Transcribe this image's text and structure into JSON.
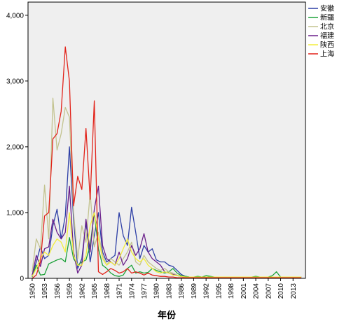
{
  "chart_data": {
    "type": "line",
    "xlabel": "年份",
    "ylabel": "",
    "ylim": [
      0,
      4200
    ],
    "yticks": [
      0,
      1000,
      2000,
      3000,
      4000
    ],
    "ytick_labels": [
      "0",
      "1,000",
      "2,000",
      "3,000",
      "4,000"
    ],
    "xlim": [
      1949,
      2016
    ],
    "xticks": [
      1950,
      1953,
      1956,
      1959,
      1962,
      1965,
      1968,
      1971,
      1974,
      1977,
      1980,
      1983,
      1986,
      1989,
      1992,
      1995,
      1998,
      2001,
      2004,
      2007,
      2010,
      2013
    ],
    "xtick_labels": [
      "1950",
      "1953",
      "1956",
      "1959",
      "1962",
      "1965",
      "1968",
      "1971",
      "1974",
      "1977",
      "1980",
      "1983",
      "1986",
      "1989",
      "1992",
      "1995",
      "1998",
      "2001",
      "2004",
      "2007",
      "2010",
      "2013"
    ],
    "legend_position": "top-right",
    "grid": false,
    "plot_background": "#efefef",
    "series": [
      {
        "name": "安徽",
        "color": "#2d3fa6",
        "x": [
          1950,
          1951,
          1952,
          1953,
          1954,
          1955,
          1956,
          1957,
          1958,
          1959,
          1960,
          1961,
          1962,
          1963,
          1964,
          1965,
          1966,
          1967,
          1968,
          1969,
          1970,
          1971,
          1972,
          1973,
          1974,
          1975,
          1976,
          1977,
          1978,
          1979,
          1980,
          1981,
          1982,
          1983,
          1984,
          1985,
          1986,
          1987,
          1988,
          1989,
          1990,
          1991,
          1992,
          1993,
          1994,
          1995,
          1996,
          1997,
          1998,
          1999,
          2000,
          2001,
          2002,
          2003,
          2004,
          2005,
          2006,
          2007,
          2008,
          2009,
          2010,
          2011,
          2012,
          2013,
          2014,
          2015
        ],
        "y": [
          50,
          250,
          480,
          300,
          350,
          800,
          1050,
          600,
          950,
          2000,
          900,
          150,
          300,
          850,
          250,
          650,
          1000,
          400,
          250,
          300,
          350,
          1000,
          650,
          500,
          1080,
          700,
          300,
          500,
          400,
          450,
          280,
          250,
          250,
          200,
          180,
          120,
          60,
          30,
          20,
          20,
          20,
          20,
          20,
          20,
          20,
          20,
          20,
          20,
          20,
          20,
          20,
          20,
          20,
          20,
          20,
          20,
          20,
          20,
          20,
          20,
          20,
          20,
          20,
          20,
          20,
          20
        ]
      },
      {
        "name": "新疆",
        "color": "#1ea23a",
        "x": [
          1950,
          1951,
          1952,
          1953,
          1954,
          1955,
          1956,
          1957,
          1958,
          1959,
          1960,
          1961,
          1962,
          1963,
          1964,
          1965,
          1966,
          1967,
          1968,
          1969,
          1970,
          1971,
          1972,
          1973,
          1974,
          1975,
          1976,
          1977,
          1978,
          1979,
          1980,
          1981,
          1982,
          1983,
          1984,
          1985,
          1986,
          1987,
          1988,
          1989,
          1990,
          1991,
          1992,
          1993,
          1994,
          1995,
          1996,
          1997,
          1998,
          1999,
          2000,
          2001,
          2002,
          2003,
          2004,
          2005,
          2006,
          2007,
          2008,
          2009,
          2010,
          2011,
          2012,
          2013,
          2014,
          2015
        ],
        "y": [
          20,
          200,
          50,
          60,
          220,
          250,
          280,
          300,
          250,
          620,
          300,
          200,
          250,
          280,
          500,
          1000,
          450,
          200,
          150,
          80,
          40,
          30,
          50,
          150,
          200,
          80,
          100,
          80,
          90,
          150,
          120,
          100,
          80,
          100,
          150,
          80,
          40,
          30,
          20,
          20,
          30,
          20,
          40,
          30,
          20,
          20,
          20,
          20,
          20,
          20,
          20,
          20,
          20,
          20,
          30,
          20,
          20,
          20,
          40,
          100,
          20,
          20,
          20,
          20,
          20,
          20
        ]
      },
      {
        "name": "北京",
        "color": "#c3c38f",
        "x": [
          1950,
          1951,
          1952,
          1953,
          1954,
          1955,
          1956,
          1957,
          1958,
          1959,
          1960,
          1961,
          1962,
          1963,
          1964,
          1965,
          1966,
          1967,
          1968,
          1969,
          1970,
          1971,
          1972,
          1973,
          1974,
          1975,
          1976,
          1977,
          1978,
          1979,
          1980,
          1981,
          1982,
          1983,
          1984,
          1985,
          1986,
          1987,
          1988,
          1989,
          1990,
          1991,
          1992,
          1993,
          1994,
          1995,
          1996,
          1997,
          1998,
          1999,
          2000,
          2001,
          2002,
          2003,
          2004,
          2005,
          2006,
          2007,
          2008,
          2009,
          2010,
          2011,
          2012,
          2013,
          2014,
          2015
        ],
        "y": [
          100,
          600,
          450,
          1420,
          600,
          2740,
          1950,
          2200,
          2600,
          2450,
          1000,
          300,
          800,
          550,
          1300,
          480,
          700,
          350,
          200,
          300,
          250,
          200,
          300,
          400,
          550,
          250,
          200,
          350,
          250,
          200,
          150,
          120,
          150,
          100,
          80,
          50,
          30,
          20,
          20,
          20,
          20,
          20,
          20,
          20,
          20,
          20,
          20,
          20,
          20,
          20,
          20,
          20,
          20,
          20,
          20,
          20,
          20,
          20,
          20,
          20,
          20,
          20,
          20,
          20,
          20,
          20
        ]
      },
      {
        "name": "福建",
        "color": "#6a1f8a",
        "x": [
          1950,
          1951,
          1952,
          1953,
          1954,
          1955,
          1956,
          1957,
          1958,
          1959,
          1960,
          1961,
          1962,
          1963,
          1964,
          1965,
          1966,
          1967,
          1968,
          1969,
          1970,
          1971,
          1972,
          1973,
          1974,
          1975,
          1976,
          1977,
          1978,
          1979,
          1980,
          1981,
          1982,
          1983,
          1984,
          1985,
          1986,
          1987,
          1988,
          1989,
          1990,
          1991,
          1992,
          1993,
          1994,
          1995,
          1996,
          1997,
          1998,
          1999,
          2000,
          2001,
          2002,
          2003,
          2004,
          2005,
          2006,
          2007,
          2008,
          2009,
          2010,
          2011,
          2012,
          2013,
          2014,
          2015
        ],
        "y": [
          40,
          350,
          180,
          450,
          480,
          900,
          700,
          600,
          700,
          1400,
          400,
          80,
          200,
          900,
          400,
          1050,
          1400,
          500,
          300,
          250,
          200,
          400,
          200,
          300,
          500,
          350,
          450,
          680,
          400,
          300,
          250,
          200,
          100,
          80,
          60,
          40,
          30,
          20,
          20,
          20,
          20,
          20,
          20,
          20,
          20,
          20,
          20,
          20,
          20,
          20,
          20,
          20,
          20,
          20,
          20,
          20,
          20,
          20,
          20,
          20,
          20,
          20,
          20,
          20,
          20,
          20
        ]
      },
      {
        "name": "陕西",
        "color": "#f2ee3c",
        "x": [
          1950,
          1951,
          1952,
          1953,
          1954,
          1955,
          1956,
          1957,
          1958,
          1959,
          1960,
          1961,
          1962,
          1963,
          1964,
          1965,
          1966,
          1967,
          1968,
          1969,
          1970,
          1971,
          1972,
          1973,
          1974,
          1975,
          1976,
          1977,
          1978,
          1979,
          1980,
          1981,
          1982,
          1983,
          1984,
          1985,
          1986,
          1987,
          1988,
          1989,
          1990,
          1991,
          1992,
          1993,
          1994,
          1995,
          1996,
          1997,
          1998,
          1999,
          2000,
          2001,
          2002,
          2003,
          2004,
          2005,
          2006,
          2007,
          2008,
          2009,
          2010,
          2011,
          2012,
          2013,
          2014,
          2015
        ],
        "y": [
          30,
          150,
          300,
          400,
          350,
          500,
          600,
          550,
          400,
          1000,
          350,
          200,
          200,
          350,
          800,
          1000,
          600,
          300,
          200,
          250,
          200,
          300,
          450,
          600,
          400,
          300,
          250,
          300,
          200,
          150,
          100,
          80,
          100,
          80,
          50,
          40,
          30,
          20,
          20,
          20,
          20,
          20,
          20,
          20,
          20,
          20,
          20,
          20,
          20,
          20,
          20,
          20,
          20,
          20,
          20,
          20,
          20,
          20,
          20,
          20,
          20,
          20,
          20,
          20,
          20,
          20
        ]
      },
      {
        "name": "上海",
        "color": "#e2231a",
        "x": [
          1950,
          1951,
          1952,
          1953,
          1954,
          1955,
          1956,
          1957,
          1958,
          1959,
          1960,
          1961,
          1962,
          1963,
          1964,
          1965,
          1966,
          1967,
          1968,
          1969,
          1970,
          1971,
          1972,
          1973,
          1974,
          1975,
          1976,
          1977,
          1978,
          1979,
          1980,
          1981,
          1982,
          1983,
          1984,
          1985,
          1986,
          1987,
          1988,
          1989,
          1990,
          1991,
          1992,
          1993,
          1994,
          1995,
          1996,
          1997,
          1998,
          1999,
          2000,
          2001,
          2002,
          2003,
          2004,
          2005,
          2006,
          2007,
          2008,
          2009,
          2010,
          2011,
          2012,
          2013,
          2014,
          2015
        ],
        "y": [
          0,
          50,
          250,
          950,
          1000,
          2120,
          2200,
          2540,
          3520,
          3000,
          1100,
          1550,
          1350,
          2280,
          1200,
          2700,
          100,
          60,
          100,
          150,
          120,
          80,
          100,
          150,
          80,
          100,
          80,
          50,
          80,
          50,
          40,
          30,
          30,
          20,
          20,
          10,
          10,
          10,
          10,
          10,
          10,
          10,
          10,
          10,
          10,
          10,
          10,
          10,
          10,
          10,
          10,
          10,
          10,
          10,
          10,
          10,
          10,
          10,
          10,
          10,
          10,
          10,
          10,
          10,
          10,
          10
        ]
      }
    ]
  }
}
